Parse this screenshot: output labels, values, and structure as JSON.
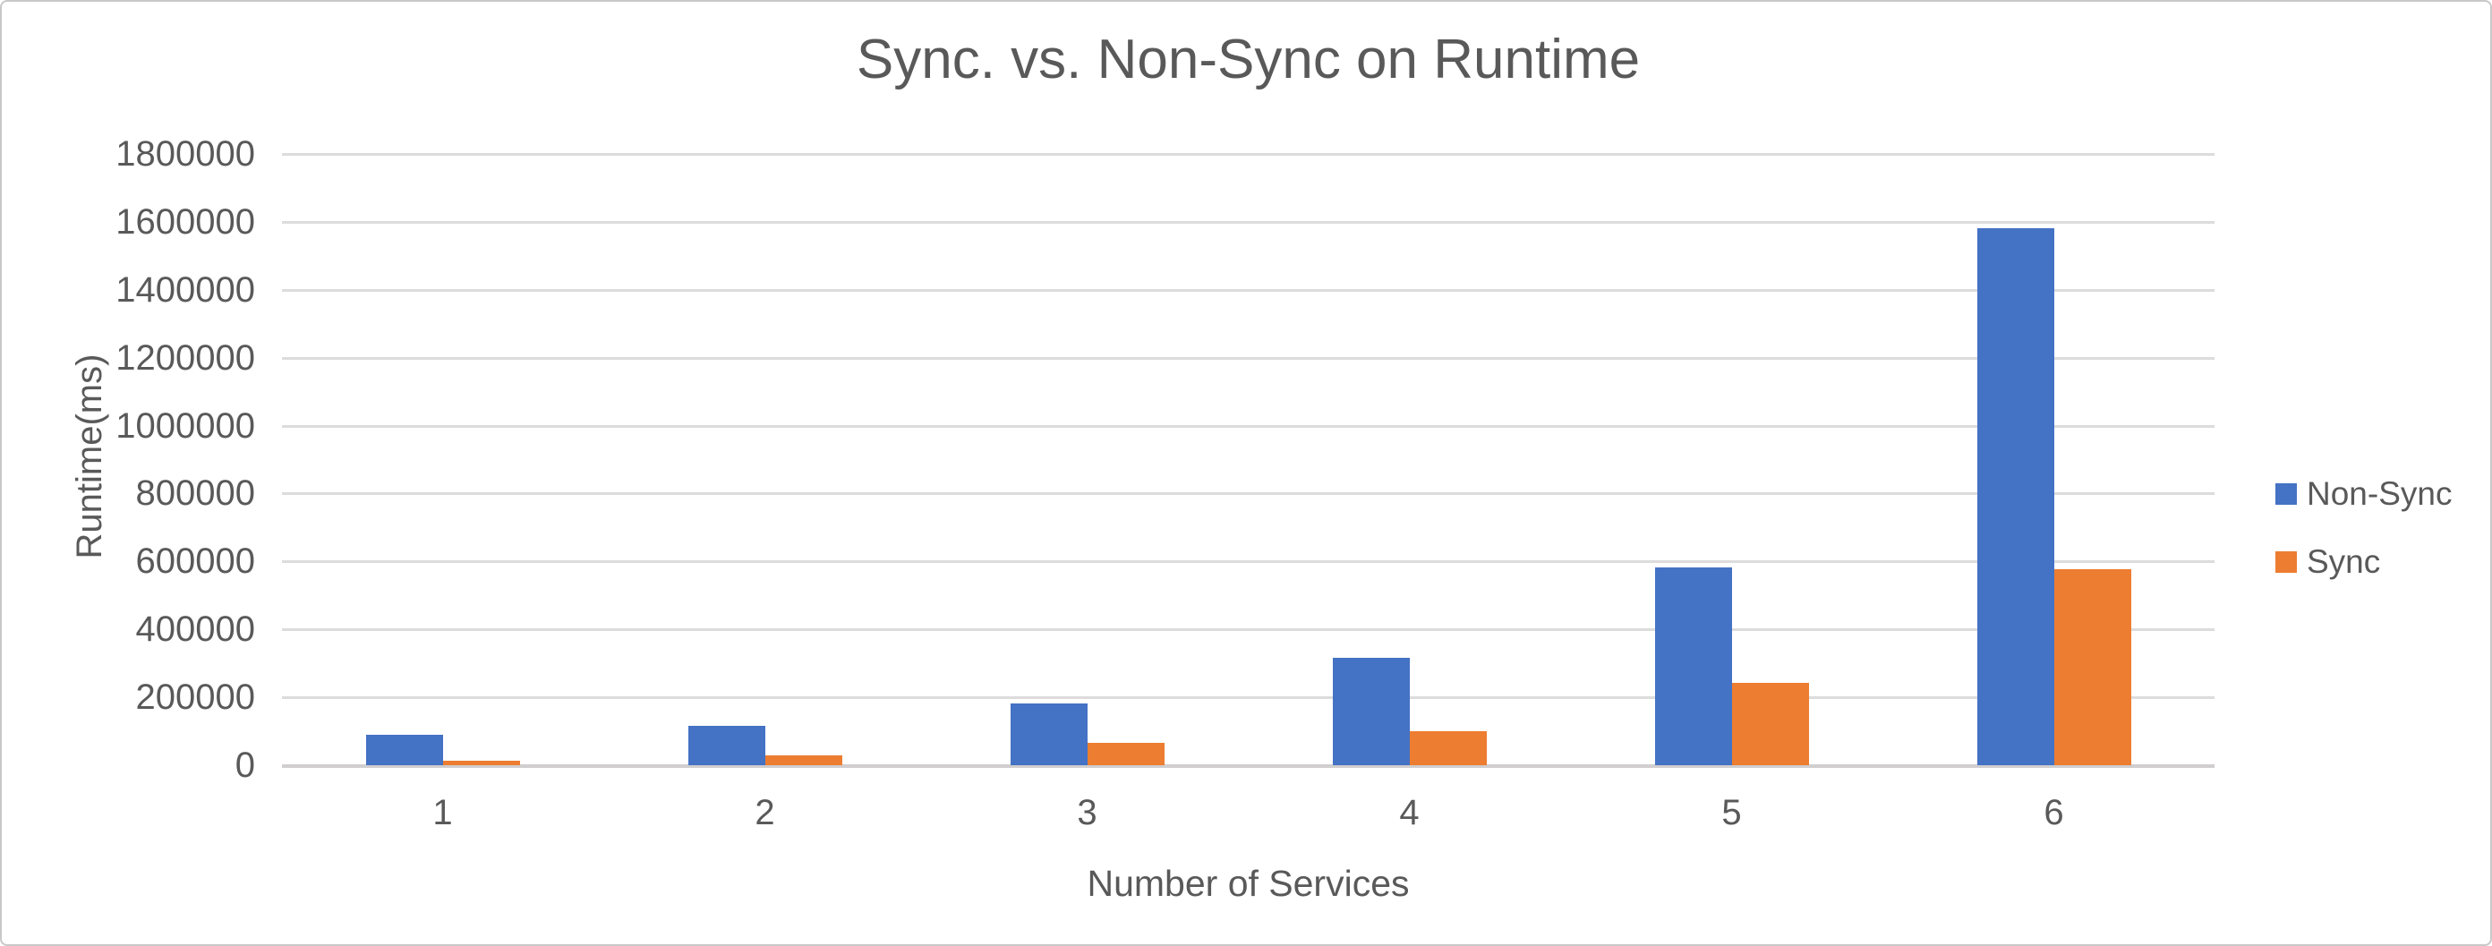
{
  "chart_data": {
    "type": "bar",
    "title": "Sync. vs. Non-Sync on Runtime",
    "xlabel": "Number of Services",
    "ylabel": "Runtime(ms)",
    "categories": [
      "1",
      "2",
      "3",
      "4",
      "5",
      "6"
    ],
    "series": [
      {
        "name": "Non-Sync",
        "color": "#4472C4",
        "values": [
          90000,
          117000,
          181000,
          315000,
          582000,
          1580000
        ]
      },
      {
        "name": "Sync",
        "color": "#ED7D31",
        "values": [
          14000,
          30000,
          65000,
          100000,
          243000,
          578000
        ]
      }
    ],
    "ylim": [
      0,
      1800000
    ],
    "ytick_step": 200000,
    "yticks": [
      "0",
      "200000",
      "400000",
      "600000",
      "800000",
      "1000000",
      "1200000",
      "1400000",
      "1600000",
      "1800000"
    ],
    "grid": true,
    "legend_position": "right",
    "colors": {
      "text": "#595959",
      "gridline": "#DCDCDC",
      "axis_line": "#D0CECE",
      "background": "#FFFFFF",
      "border": "#C8C8C8"
    }
  }
}
